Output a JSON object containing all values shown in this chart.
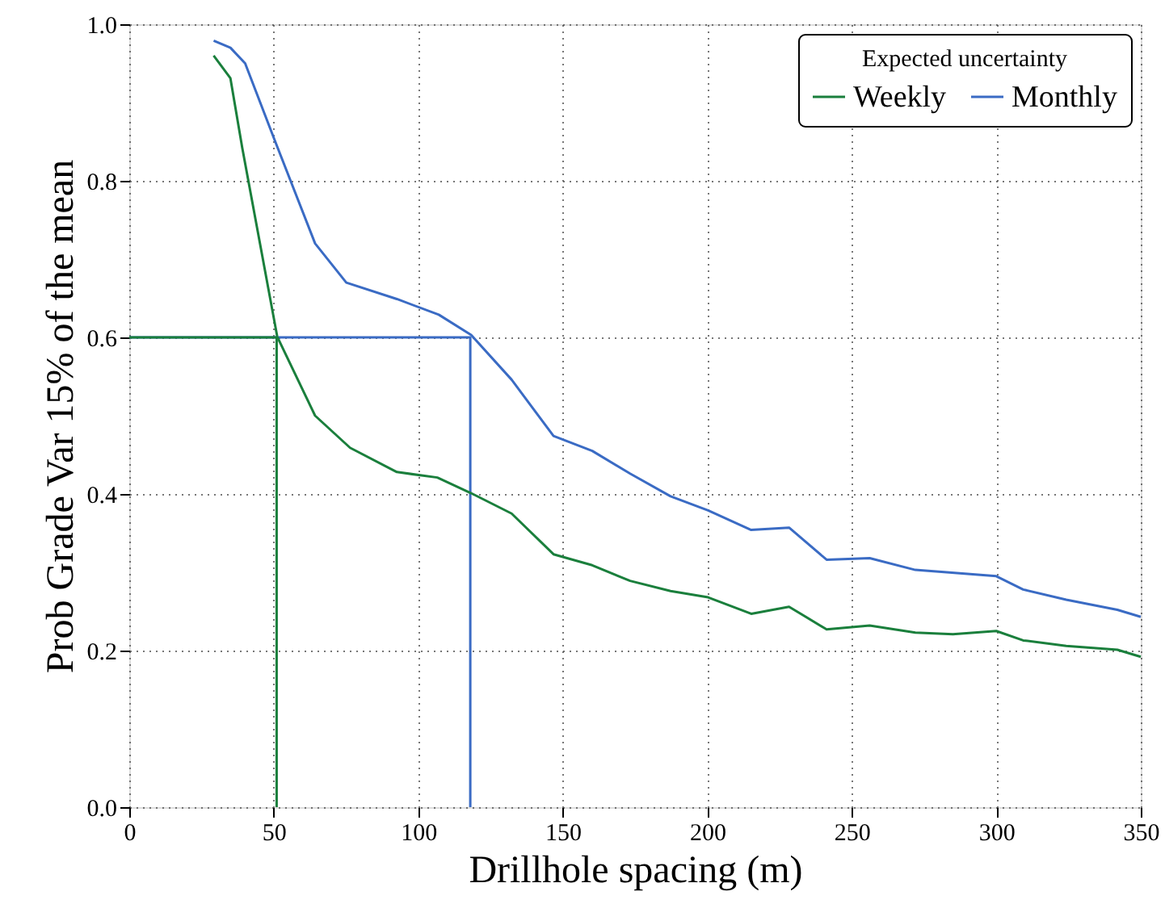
{
  "chart_data": {
    "type": "line",
    "xlabel": "Drillhole spacing (m)",
    "ylabel": "Prob Grade Var 15% of the mean",
    "legend_title": "Expected uncertainty",
    "xlim": [
      0,
      350
    ],
    "xticks": [
      0,
      50,
      100,
      150,
      200,
      250,
      300,
      350
    ],
    "ylim": [
      0,
      1
    ],
    "yticks": [
      {
        "value": 0,
        "label": "0.0"
      },
      {
        "value": 0.2,
        "label": "0.2"
      },
      {
        "value": 0.4,
        "label": "0.4"
      },
      {
        "value": 0.6,
        "label": "0.6"
      },
      {
        "value": 0.8,
        "label": "0.8"
      },
      {
        "value": 1,
        "label": "1.0"
      }
    ],
    "grid": true,
    "legend": "top right",
    "series": [
      {
        "color": "#3a6bc4",
        "x": [
          0,
          118,
          118
        ],
        "values": [
          0.6,
          0.6,
          0
        ]
      },
      {
        "color": "#1a7f3c",
        "x": [
          0,
          51,
          51
        ],
        "values": [
          0.6,
          0.6,
          0
        ]
      },
      {
        "name": "Weekly",
        "color": "#1a7f3c",
        "x": [
          29.2,
          35.0,
          39.1,
          51.2,
          64.3,
          76.4,
          92.6,
          106.6,
          118.3,
          132.3,
          146.8,
          160.2,
          173.3,
          187.3,
          200.3,
          215.2,
          228.3,
          241.3,
          256.2,
          272.0,
          285.0,
          300.0,
          309.3,
          324.2,
          341.9,
          350
        ],
        "values": [
          0.96,
          0.931,
          0.842,
          0.601,
          0.5,
          0.459,
          0.428,
          0.421,
          0.401,
          0.375,
          0.323,
          0.309,
          0.289,
          0.276,
          0.268,
          0.247,
          0.256,
          0.227,
          0.232,
          0.223,
          0.221,
          0.225,
          0.213,
          0.206,
          0.201,
          0.192
        ]
      },
      {
        "name": "Monthly",
        "color": "#3a6bc4",
        "x": [
          29.2,
          35.0,
          40.1,
          50.3,
          64.3,
          75.1,
          92.6,
          107.1,
          118.3,
          132.3,
          146.8,
          160.2,
          173.3,
          187.3,
          200.3,
          215.2,
          228.3,
          241.3,
          256.2,
          272.0,
          300.0,
          309.3,
          324.2,
          341.9,
          350
        ],
        "values": [
          0.979,
          0.97,
          0.95,
          0.852,
          0.72,
          0.67,
          0.649,
          0.629,
          0.603,
          0.546,
          0.474,
          0.455,
          0.426,
          0.397,
          0.379,
          0.354,
          0.357,
          0.316,
          0.318,
          0.303,
          0.295,
          0.278,
          0.265,
          0.252,
          0.243
        ]
      }
    ]
  }
}
